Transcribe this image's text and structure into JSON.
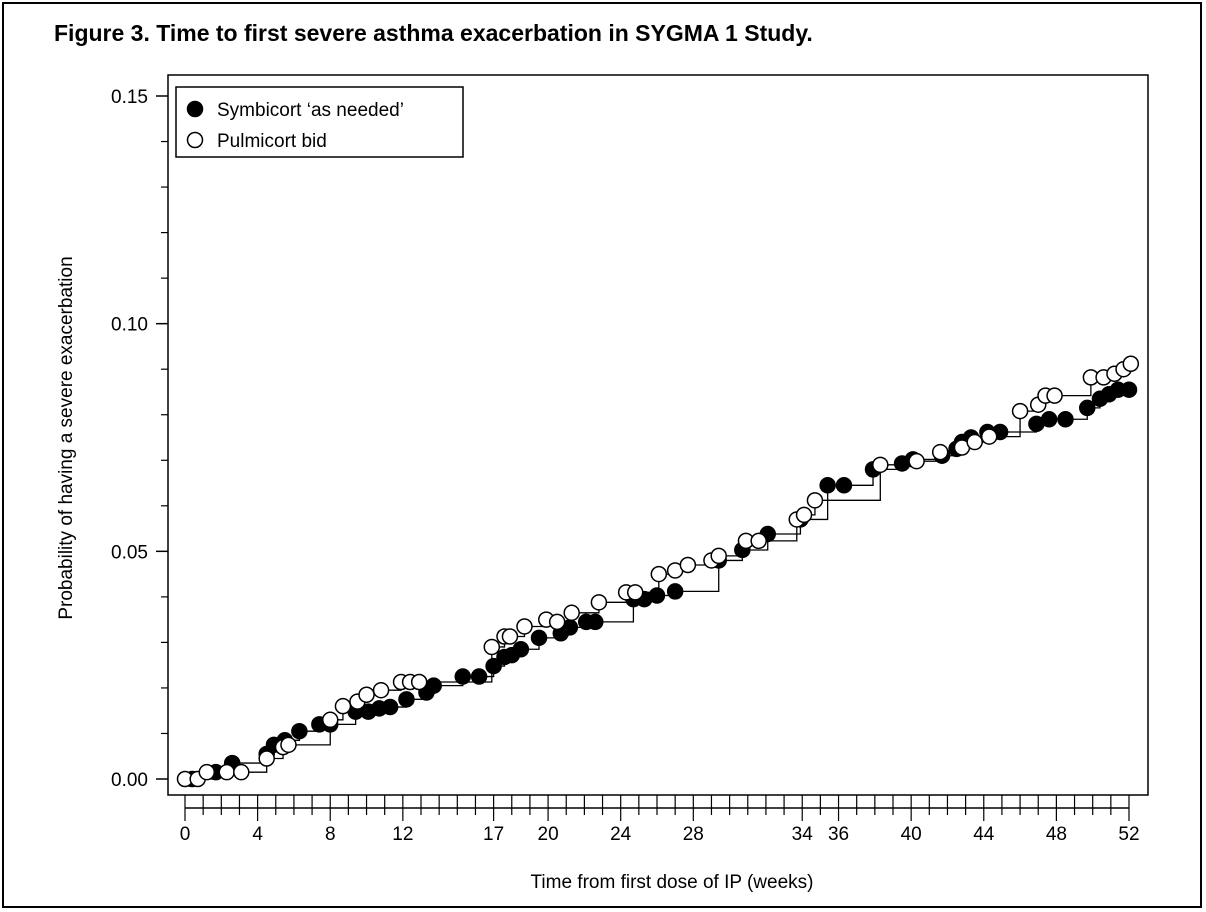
{
  "figure_title": "Figure 3. Time to first severe asthma exacerbation in SYGMA 1 Study.",
  "chart_data": {
    "type": "line",
    "xlabel": "Time from first dose of IP (weeks)",
    "ylabel": "Probability of having a severe exacerbation",
    "xlim": [
      0,
      52
    ],
    "ylim": [
      0,
      0.15
    ],
    "x_ticks": [
      0,
      4,
      8,
      12,
      17,
      20,
      24,
      28,
      34,
      36,
      40,
      44,
      48,
      52
    ],
    "y_ticks": [
      0.0,
      0.05,
      0.1,
      0.15
    ],
    "y_tick_labels": [
      "0.00",
      "0.05",
      "0.10",
      "0.15"
    ],
    "legend_position": "top-left",
    "series": [
      {
        "name": "Symbicort ‘as needed’",
        "marker": "filled-circle",
        "points": [
          [
            0.4,
            0.0
          ],
          [
            1.7,
            0.0015
          ],
          [
            2.6,
            0.0035
          ],
          [
            4.5,
            0.0055
          ],
          [
            4.9,
            0.0075
          ],
          [
            5.5,
            0.0085
          ],
          [
            6.3,
            0.0105
          ],
          [
            7.4,
            0.012
          ],
          [
            8.0,
            0.012
          ],
          [
            9.4,
            0.0148
          ],
          [
            10.1,
            0.0148
          ],
          [
            10.7,
            0.0155
          ],
          [
            11.3,
            0.0158
          ],
          [
            12.2,
            0.0175
          ],
          [
            13.3,
            0.019
          ],
          [
            13.7,
            0.0205
          ],
          [
            15.3,
            0.0225
          ],
          [
            16.2,
            0.0225
          ],
          [
            17.0,
            0.0248
          ],
          [
            17.6,
            0.0268
          ],
          [
            18.0,
            0.0272
          ],
          [
            18.5,
            0.0285
          ],
          [
            19.5,
            0.031
          ],
          [
            20.7,
            0.032
          ],
          [
            21.2,
            0.0333
          ],
          [
            22.1,
            0.0345
          ],
          [
            22.6,
            0.0345
          ],
          [
            24.7,
            0.0395
          ],
          [
            25.3,
            0.0395
          ],
          [
            26.0,
            0.0403
          ],
          [
            27.0,
            0.0412
          ],
          [
            29.4,
            0.048
          ],
          [
            30.7,
            0.0503
          ],
          [
            32.1,
            0.0538
          ],
          [
            33.9,
            0.057
          ],
          [
            35.4,
            0.0645
          ],
          [
            36.3,
            0.0645
          ],
          [
            37.9,
            0.068
          ],
          [
            39.5,
            0.0693
          ],
          [
            40.1,
            0.0702
          ],
          [
            41.7,
            0.071
          ],
          [
            42.5,
            0.0725
          ],
          [
            42.8,
            0.074
          ],
          [
            43.3,
            0.075
          ],
          [
            44.2,
            0.0762
          ],
          [
            44.9,
            0.0762
          ],
          [
            46.9,
            0.078
          ],
          [
            47.6,
            0.079
          ],
          [
            48.5,
            0.079
          ],
          [
            49.7,
            0.0815
          ],
          [
            50.4,
            0.0835
          ],
          [
            50.9,
            0.0845
          ],
          [
            51.4,
            0.0855
          ],
          [
            52.0,
            0.0855
          ]
        ]
      },
      {
        "name": "Pulmicort bid",
        "marker": "open-circle",
        "points": [
          [
            0.0,
            0.0
          ],
          [
            0.7,
            0.0
          ],
          [
            1.2,
            0.0015
          ],
          [
            2.3,
            0.0015
          ],
          [
            3.1,
            0.0015
          ],
          [
            4.5,
            0.0045
          ],
          [
            5.4,
            0.007
          ],
          [
            5.7,
            0.0075
          ],
          [
            8.0,
            0.013
          ],
          [
            8.7,
            0.016
          ],
          [
            9.5,
            0.017
          ],
          [
            10.0,
            0.0185
          ],
          [
            10.8,
            0.0195
          ],
          [
            11.9,
            0.0213
          ],
          [
            12.4,
            0.0213
          ],
          [
            12.9,
            0.0213
          ],
          [
            16.9,
            0.029
          ],
          [
            17.6,
            0.0313
          ],
          [
            17.9,
            0.0313
          ],
          [
            18.7,
            0.0335
          ],
          [
            19.9,
            0.035
          ],
          [
            20.5,
            0.0345
          ],
          [
            21.3,
            0.0365
          ],
          [
            22.8,
            0.0388
          ],
          [
            24.3,
            0.041
          ],
          [
            24.8,
            0.041
          ],
          [
            26.1,
            0.045
          ],
          [
            27.0,
            0.0458
          ],
          [
            27.7,
            0.047
          ],
          [
            29.0,
            0.048
          ],
          [
            29.4,
            0.049
          ],
          [
            30.9,
            0.0523
          ],
          [
            31.6,
            0.0523
          ],
          [
            33.7,
            0.057
          ],
          [
            34.1,
            0.058
          ],
          [
            34.7,
            0.0612
          ],
          [
            38.3,
            0.069
          ],
          [
            40.3,
            0.0698
          ],
          [
            41.6,
            0.0718
          ],
          [
            42.8,
            0.0728
          ],
          [
            43.5,
            0.074
          ],
          [
            44.3,
            0.0752
          ],
          [
            46.0,
            0.0808
          ],
          [
            47.0,
            0.0822
          ],
          [
            47.4,
            0.0842
          ],
          [
            47.9,
            0.0842
          ],
          [
            49.9,
            0.0882
          ],
          [
            50.6,
            0.0882
          ],
          [
            51.2,
            0.089
          ],
          [
            51.7,
            0.09
          ],
          [
            52.1,
            0.0912
          ]
        ]
      }
    ]
  }
}
